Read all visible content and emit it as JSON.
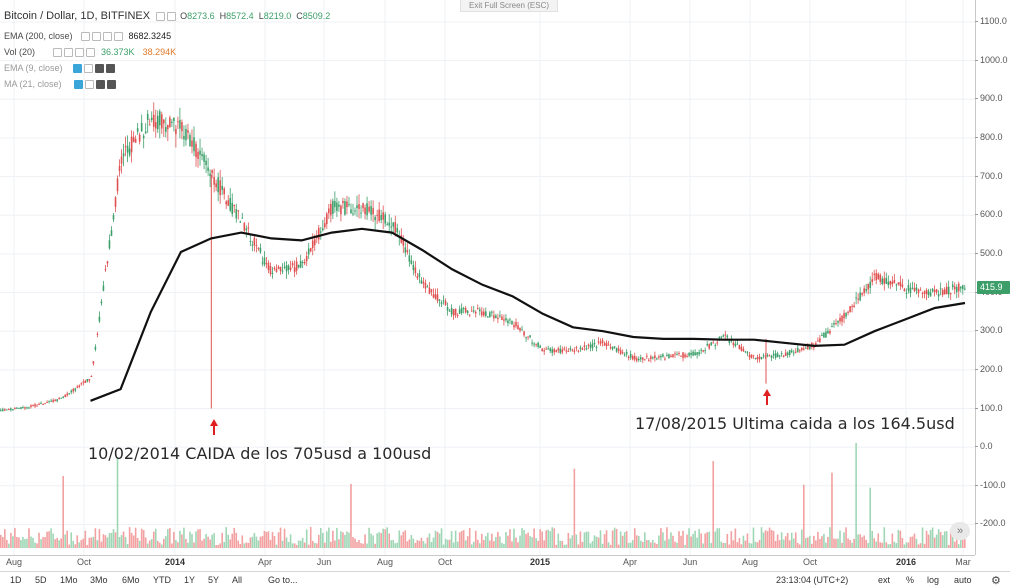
{
  "legend": {
    "symbol": "Bitcoin / Dollar, 1D, BITFINEX",
    "o_label": "O",
    "o": "8273.6",
    "h_label": "H",
    "h": "8572.4",
    "l_label": "L",
    "l": "8219.0",
    "c_label": "C",
    "c": "8509.2",
    "ema200": "EMA (200, close)",
    "ema200_value": "8682.3245",
    "vol": "Vol (20)",
    "vol_value1": "36.373K",
    "vol_value2": "38.294K",
    "ema9": "EMA (9, close)",
    "ma21": "MA (21, close)"
  },
  "exit_fullscreen": "Exit Full Screen (ESC)",
  "annotations": {
    "left": "10/02/2014 CAIDA de los 705usd a 100usd",
    "right": "17/08/2015 Ultima caida a los 164.5usd"
  },
  "price_axis": [
    "1100.0",
    "1000.0",
    "900.0",
    "800.0",
    "700.0",
    "600.0",
    "500.0",
    "400.0",
    "300.0",
    "200.0",
    "100.0",
    "0.0",
    "-100.0",
    "-200.0"
  ],
  "last_price": "415.9",
  "time_axis": [
    {
      "label": "Aug",
      "year": false
    },
    {
      "label": "Oct",
      "year": false
    },
    {
      "label": "2014",
      "year": true
    },
    {
      "label": "Apr",
      "year": false
    },
    {
      "label": "Jun",
      "year": false
    },
    {
      "label": "Aug",
      "year": false
    },
    {
      "label": "Oct",
      "year": false
    },
    {
      "label": "2015",
      "year": true
    },
    {
      "label": "Apr",
      "year": false
    },
    {
      "label": "Jun",
      "year": false
    },
    {
      "label": "Aug",
      "year": false
    },
    {
      "label": "Oct",
      "year": false
    },
    {
      "label": "2016",
      "year": true
    },
    {
      "label": "Mar",
      "year": false
    }
  ],
  "bottom_bar": {
    "ranges": [
      "1D",
      "5D",
      "1Mo",
      "3Mo",
      "6Mo",
      "YTD",
      "1Y",
      "5Y",
      "All"
    ],
    "goto": "Go to...",
    "time": "23:13:04 (UTC+2)",
    "ext": "ext",
    "percent": "%",
    "log": "log",
    "auto": "auto"
  },
  "colors": {
    "up": "#3c9f6a",
    "down": "#e05050",
    "ema": "#111111",
    "vol_up": "#9fd6b5",
    "vol_down": "#f2a0a0",
    "accent": "#3aa5d8"
  },
  "icons": {
    "scroll_right": "double-chevron-right-icon",
    "settings": "gear-icon",
    "arrow": "up-arrow-icon"
  },
  "chart_data": {
    "type": "line",
    "title": "Bitcoin / Dollar, 1D, BITFINEX",
    "ylim": [
      -280,
      1140
    ],
    "x": [
      "2013-07",
      "2013-08",
      "2013-09",
      "2013-10",
      "2013-11",
      "2013-12",
      "2014-01",
      "2014-02",
      "2014-03",
      "2014-04",
      "2014-05",
      "2014-06",
      "2014-07",
      "2014-08",
      "2014-09",
      "2014-10",
      "2014-11",
      "2014-12",
      "2015-01",
      "2015-02",
      "2015-03",
      "2015-04",
      "2015-05",
      "2015-06",
      "2015-07",
      "2015-08",
      "2015-09",
      "2015-10",
      "2015-11",
      "2015-12",
      "2016-01",
      "2016-02",
      "2016-03"
    ],
    "series": [
      {
        "name": "Bitcoin / Dollar, 1D, BITFINEX",
        "values": [
          95,
          105,
          125,
          180,
          750,
          850,
          830,
          705,
          580,
          450,
          470,
          620,
          620,
          580,
          420,
          350,
          350,
          320,
          250,
          250,
          270,
          230,
          235,
          240,
          285,
          230,
          240,
          265,
          340,
          440,
          410,
          400,
          415
        ]
      },
      {
        "name": "EMA (200, close)",
        "values": [
          null,
          null,
          null,
          120,
          150,
          350,
          505,
          540,
          555,
          540,
          535,
          555,
          565,
          555,
          510,
          460,
          420,
          390,
          345,
          310,
          300,
          285,
          280,
          280,
          278,
          278,
          270,
          262,
          265,
          300,
          330,
          360,
          373
        ]
      }
    ]
  }
}
